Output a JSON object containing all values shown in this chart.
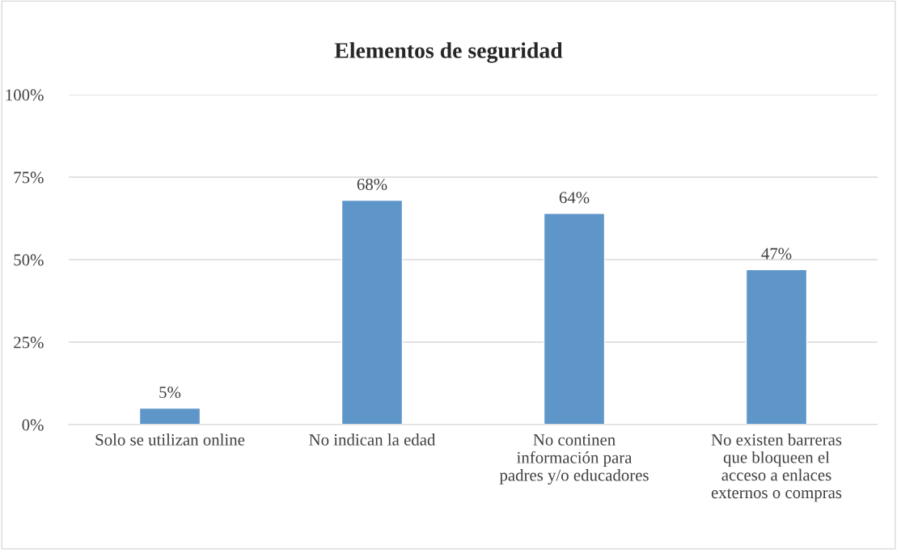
{
  "chart_data": {
    "type": "bar",
    "title": "Elementos de seguridad",
    "categories": [
      "Solo se utilizan online",
      "No indican la edad",
      "No continen\ninformación para\npadres y/o educadores",
      "No existen barreras\nque bloqueen el\nacceso a enlaces\nexternos o compras"
    ],
    "values": [
      5,
      68,
      64,
      47
    ],
    "value_labels": [
      "5%",
      "68%",
      "64%",
      "47%"
    ],
    "color": "#5f96c9",
    "ylim": [
      0,
      100
    ],
    "yticks": [
      {
        "value": 0,
        "label": "0%"
      },
      {
        "value": 25,
        "label": "25%"
      },
      {
        "value": 50,
        "label": "50%"
      },
      {
        "value": 75,
        "label": "75%"
      },
      {
        "value": 100,
        "label": "100%"
      }
    ],
    "grid": "y"
  }
}
